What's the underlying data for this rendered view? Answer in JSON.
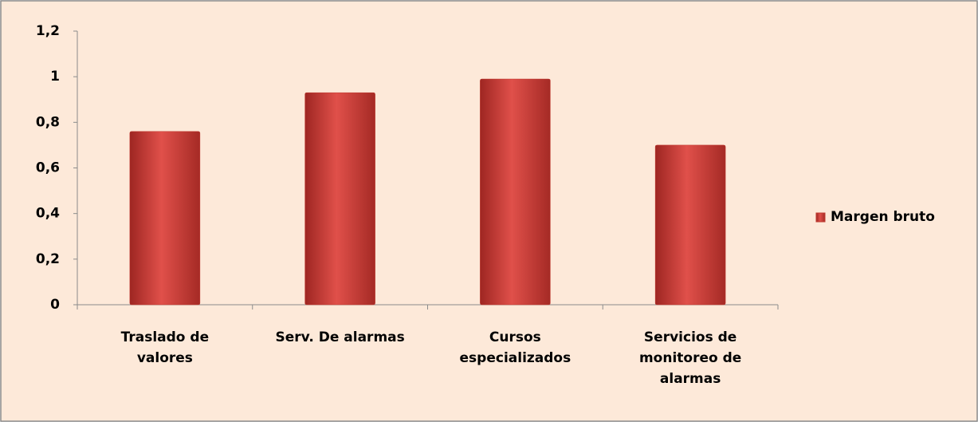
{
  "chart_data": {
    "type": "bar",
    "categories": [
      "Traslado de\nvalores",
      "Serv. De alarmas",
      "Cursos\nespecializados",
      "Servicios de\nmonitoreo de\nalarmas"
    ],
    "series": [
      {
        "name": "Margen bruto",
        "color": "#c0392f",
        "values": [
          0.76,
          0.93,
          0.99,
          0.7
        ]
      }
    ],
    "ylim": [
      0,
      1.2
    ],
    "yticks": [
      0,
      {
        "value": 0.2,
        "label": "0,2"
      },
      {
        "value": 0.4,
        "label": "0,4"
      },
      {
        "value": 0.6,
        "label": "0,6"
      },
      {
        "value": 0.8,
        "label": "0,8"
      },
      1,
      {
        "value": 1.2,
        "label": "1,2"
      }
    ],
    "grid": false,
    "legend": "right"
  }
}
